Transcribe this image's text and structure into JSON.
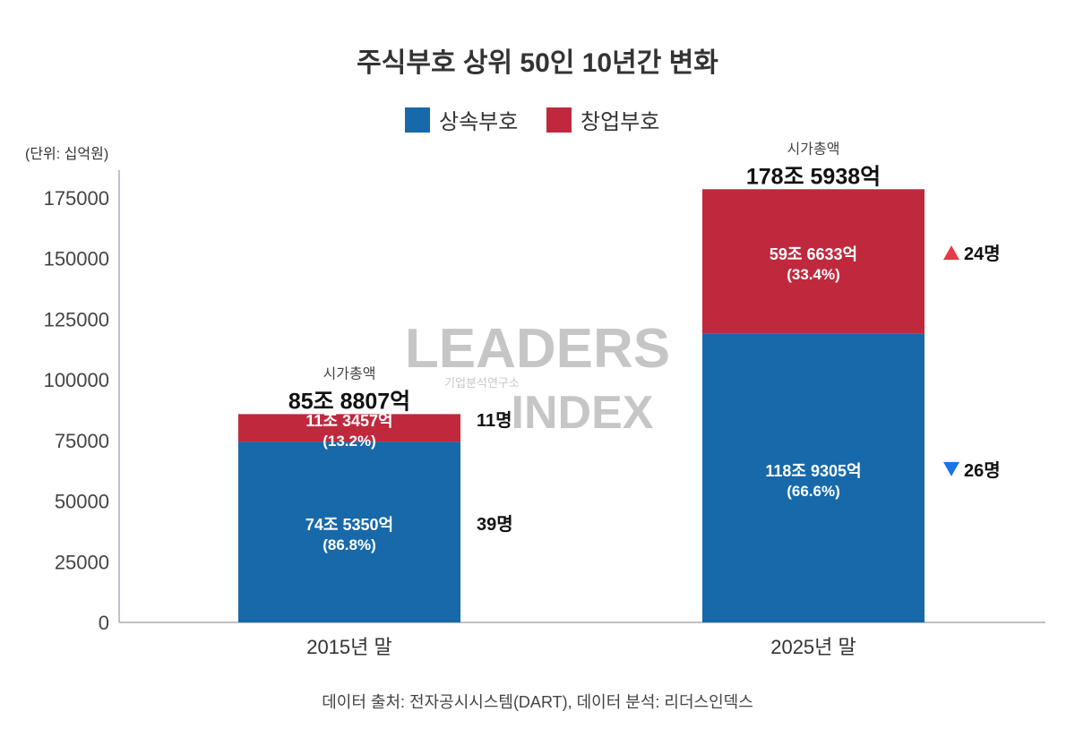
{
  "chart_data": {
    "type": "bar",
    "stacked": true,
    "title": "주식부호 상위 50인 10년간 변화",
    "unit_label": "(단위: 십억원)",
    "categories": [
      "2015년 말",
      "2025년 말"
    ],
    "ylim": [
      0,
      175000
    ],
    "yticks": [
      0,
      25000,
      50000,
      75000,
      100000,
      125000,
      150000,
      175000
    ],
    "grid": false,
    "legend_position": "top",
    "series": [
      {
        "name": "상속부호",
        "color": "#1769AA",
        "values": [
          74535.0,
          118930.5
        ],
        "labels": [
          "74조 5350억",
          "118조 9305억"
        ],
        "pcts": [
          "(86.8%)",
          "(66.6%)"
        ],
        "counts": [
          "39명",
          "26명"
        ],
        "change_marks": [
          "",
          "down"
        ]
      },
      {
        "name": "창업부호",
        "color": "#C0293D",
        "values": [
          11345.7,
          59663.3
        ],
        "labels": [
          "11조 3457억",
          "59조 6633억"
        ],
        "pcts": [
          "(13.2%)",
          "(33.4%)"
        ],
        "counts": [
          "11명",
          "24명"
        ],
        "change_marks": [
          "",
          "up"
        ]
      }
    ],
    "totals_label": "시가총액",
    "totals": [
      "85조 8807억",
      "178조 5938억"
    ],
    "up_color": "#E8394A",
    "down_color": "#1A73E8"
  },
  "watermark": {
    "line1": "LEADERS",
    "line2": "INDEX",
    "sub": "기업분석연구소"
  },
  "source": "데이터 출처: 전자공시시스템(DART), 데이터 분석: 리더스인덱스"
}
